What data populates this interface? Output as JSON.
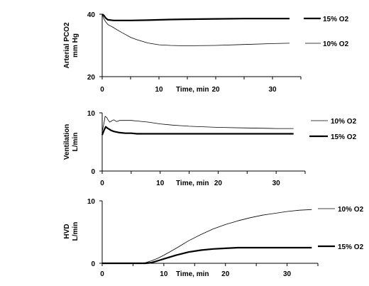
{
  "chart_data": [
    {
      "type": "line",
      "ylabel": "Arterial PCO2\nmm Hg",
      "xlabel": "Time, min",
      "xlim": [
        0,
        35
      ],
      "ylim": [
        20,
        40
      ],
      "yticks": [
        "20",
        "40"
      ],
      "xticks": [
        "0",
        "10",
        "20",
        "30"
      ],
      "series": [
        {
          "name": "15% O2",
          "weight": "thick",
          "x": [
            0,
            0.3,
            0.6,
            1,
            2,
            3,
            5,
            8,
            12,
            16,
            20,
            25,
            30,
            33
          ],
          "y": [
            40,
            39.6,
            38.8,
            38.2,
            38,
            38,
            38,
            38.1,
            38.3,
            38.4,
            38.5,
            38.6,
            38.6,
            38.6
          ]
        },
        {
          "name": "10% O2",
          "weight": "thin",
          "x": [
            0,
            0.3,
            0.6,
            1,
            1.5,
            2,
            3,
            4,
            5,
            6,
            8,
            10,
            12,
            14,
            16,
            20,
            25,
            30,
            33
          ],
          "y": [
            40,
            38.5,
            37.6,
            36.7,
            36.2,
            35.7,
            34.6,
            33.6,
            32.6,
            31.9,
            30.8,
            30.2,
            30.0,
            29.9,
            29.9,
            30.0,
            30.3,
            30.6,
            30.7
          ]
        }
      ]
    },
    {
      "type": "line",
      "ylabel": "Ventilation\nL/min",
      "xlabel": "Time, min",
      "xlim": [
        0,
        35
      ],
      "ylim": [
        0,
        10
      ],
      "yticks": [
        "0",
        "10"
      ],
      "xticks": [
        "0",
        "10",
        "20",
        "30"
      ],
      "series": [
        {
          "name": "10% O2",
          "weight": "thin",
          "x": [
            0,
            0.3,
            0.5,
            0.8,
            1,
            1.3,
            1.6,
            2,
            2.5,
            3,
            4,
            5,
            6,
            8,
            10,
            12,
            15,
            20,
            25,
            30,
            33
          ],
          "y": [
            6.8,
            8.2,
            9.4,
            9.2,
            8.8,
            8.4,
            8.6,
            8.8,
            8.5,
            8.7,
            8.7,
            8.7,
            8.6,
            8.4,
            8.1,
            7.9,
            7.7,
            7.5,
            7.4,
            7.3,
            7.3
          ]
        },
        {
          "name": "15% O2",
          "weight": "thick",
          "x": [
            0,
            0.3,
            0.6,
            1,
            1.5,
            2,
            3,
            4,
            5,
            6,
            8,
            10,
            15,
            20,
            25,
            30,
            33
          ],
          "y": [
            6.2,
            7.0,
            7.6,
            7.3,
            7.0,
            6.8,
            6.6,
            6.5,
            6.5,
            6.4,
            6.4,
            6.4,
            6.4,
            6.4,
            6.4,
            6.4,
            6.4
          ]
        }
      ]
    },
    {
      "type": "line",
      "ylabel": "HVD\nL/min",
      "xlabel": "Time, min",
      "xlim": [
        0,
        35
      ],
      "ylim": [
        0,
        10
      ],
      "yticks": [
        "0",
        "10"
      ],
      "xticks": [
        "0",
        "10",
        "20",
        "30"
      ],
      "series": [
        {
          "name": "10% O2",
          "weight": "thin",
          "x": [
            0,
            6,
            7,
            8,
            9,
            10,
            12,
            14,
            16,
            18,
            20,
            22,
            24,
            26,
            28,
            30,
            32,
            34
          ],
          "y": [
            0,
            0,
            0.1,
            0.4,
            0.8,
            1.3,
            2.4,
            3.6,
            4.6,
            5.5,
            6.2,
            6.8,
            7.3,
            7.7,
            8.0,
            8.3,
            8.5,
            8.6
          ]
        },
        {
          "name": "15% O2",
          "weight": "thick",
          "x": [
            0,
            7,
            8,
            9,
            10,
            12,
            14,
            16,
            18,
            20,
            22,
            25,
            30,
            34
          ],
          "y": [
            0,
            0,
            0.1,
            0.4,
            0.7,
            1.3,
            1.8,
            2.1,
            2.3,
            2.4,
            2.5,
            2.5,
            2.5,
            2.5
          ]
        }
      ]
    }
  ]
}
